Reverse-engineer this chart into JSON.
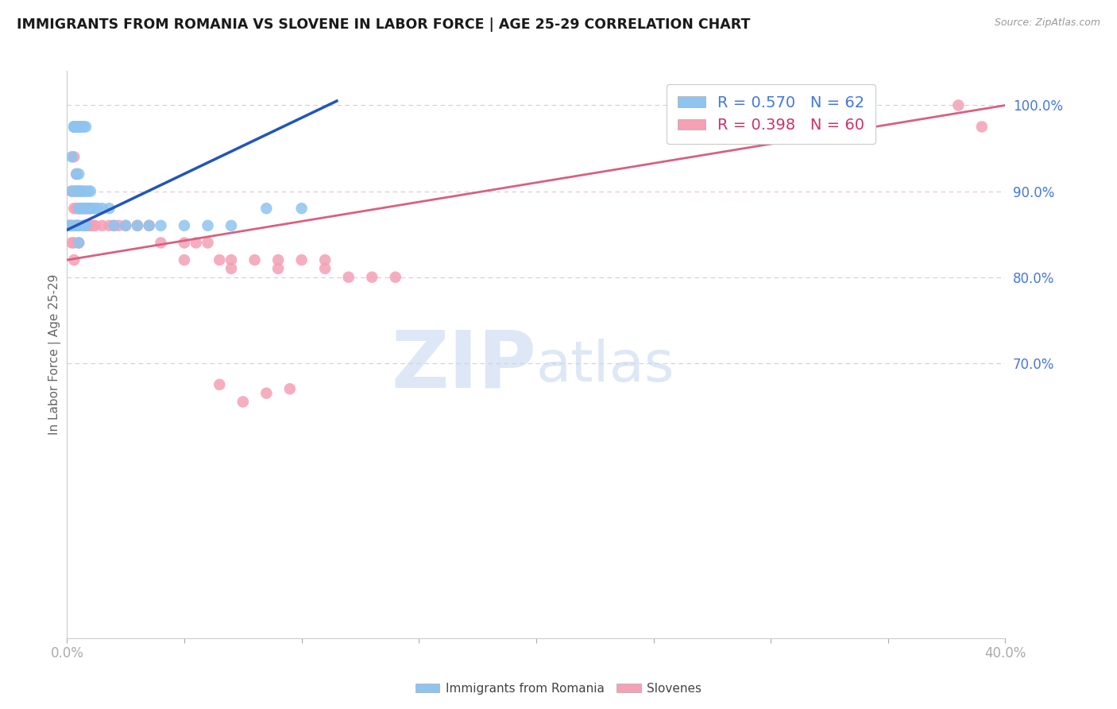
{
  "title": "IMMIGRANTS FROM ROMANIA VS SLOVENE IN LABOR FORCE | AGE 25-29 CORRELATION CHART",
  "source": "Source: ZipAtlas.com",
  "ylabel": "In Labor Force | Age 25-29",
  "xlim": [
    0.0,
    0.4
  ],
  "ylim": [
    0.38,
    1.04
  ],
  "romania_R": 0.57,
  "romania_N": 62,
  "slovene_R": 0.398,
  "slovene_N": 60,
  "romania_color": "#8ec4ef",
  "slovene_color": "#f4a0b5",
  "romania_line_color": "#2255bb",
  "slovene_line_color": "#d96080",
  "watermark_zip": "ZIP",
  "watermark_atlas": "atlas",
  "watermark_color_zip": "#c8d8f0",
  "watermark_color_atlas": "#c8d8f0",
  "grid_color": "#e0c8d0",
  "background_color": "#ffffff",
  "right_ytick_color": "#4477dd",
  "xtick_color": "#4477dd",
  "romania_x": [
    0.001,
    0.002,
    0.002,
    0.002,
    0.003,
    0.003,
    0.003,
    0.003,
    0.003,
    0.003,
    0.004,
    0.004,
    0.004,
    0.004,
    0.004,
    0.004,
    0.004,
    0.004,
    0.004,
    0.004,
    0.005,
    0.005,
    0.005,
    0.005,
    0.005,
    0.005,
    0.005,
    0.005,
    0.005,
    0.005,
    0.006,
    0.006,
    0.006,
    0.006,
    0.007,
    0.007,
    0.007,
    0.007,
    0.007,
    0.008,
    0.008,
    0.008,
    0.008,
    0.009,
    0.009,
    0.01,
    0.01,
    0.011,
    0.012,
    0.013,
    0.015,
    0.018,
    0.02,
    0.025,
    0.03,
    0.035,
    0.04,
    0.05,
    0.06,
    0.07,
    0.085,
    0.1
  ],
  "romania_y": [
    0.86,
    0.94,
    0.9,
    0.86,
    0.975,
    0.975,
    0.975,
    0.975,
    0.975,
    0.975,
    0.975,
    0.975,
    0.975,
    0.975,
    0.975,
    0.975,
    0.975,
    0.86,
    0.9,
    0.92,
    0.975,
    0.975,
    0.975,
    0.975,
    0.975,
    0.92,
    0.9,
    0.88,
    0.86,
    0.84,
    0.975,
    0.975,
    0.9,
    0.88,
    0.975,
    0.975,
    0.9,
    0.88,
    0.86,
    0.975,
    0.9,
    0.88,
    0.86,
    0.9,
    0.88,
    0.9,
    0.88,
    0.88,
    0.88,
    0.88,
    0.88,
    0.88,
    0.86,
    0.86,
    0.86,
    0.86,
    0.86,
    0.86,
    0.86,
    0.86,
    0.88,
    0.88
  ],
  "slovene_x": [
    0.001,
    0.002,
    0.002,
    0.002,
    0.003,
    0.003,
    0.003,
    0.003,
    0.003,
    0.003,
    0.004,
    0.004,
    0.004,
    0.004,
    0.005,
    0.005,
    0.005,
    0.005,
    0.006,
    0.006,
    0.007,
    0.007,
    0.008,
    0.008,
    0.009,
    0.009,
    0.01,
    0.01,
    0.011,
    0.012,
    0.015,
    0.018,
    0.02,
    0.022,
    0.025,
    0.03,
    0.035,
    0.04,
    0.05,
    0.055,
    0.06,
    0.065,
    0.07,
    0.08,
    0.09,
    0.1,
    0.11,
    0.12,
    0.13,
    0.14,
    0.065,
    0.075,
    0.085,
    0.095,
    0.38,
    0.39,
    0.05,
    0.07,
    0.09,
    0.11
  ],
  "slovene_y": [
    0.86,
    0.9,
    0.86,
    0.84,
    0.94,
    0.9,
    0.88,
    0.86,
    0.84,
    0.82,
    0.92,
    0.9,
    0.88,
    0.86,
    0.9,
    0.88,
    0.86,
    0.84,
    0.9,
    0.88,
    0.88,
    0.86,
    0.88,
    0.86,
    0.88,
    0.86,
    0.88,
    0.86,
    0.86,
    0.86,
    0.86,
    0.86,
    0.86,
    0.86,
    0.86,
    0.86,
    0.86,
    0.84,
    0.84,
    0.84,
    0.84,
    0.82,
    0.82,
    0.82,
    0.82,
    0.82,
    0.82,
    0.8,
    0.8,
    0.8,
    0.675,
    0.655,
    0.665,
    0.67,
    1.0,
    0.975,
    0.82,
    0.81,
    0.81,
    0.81
  ]
}
